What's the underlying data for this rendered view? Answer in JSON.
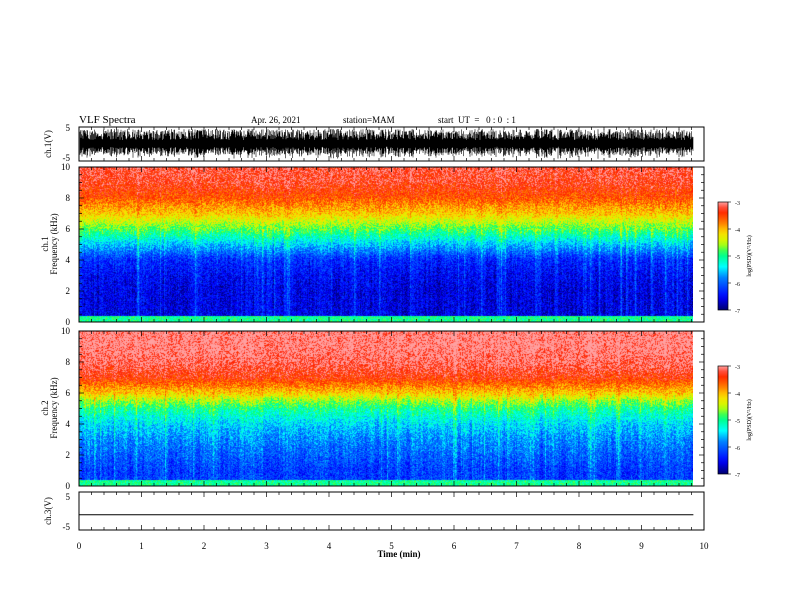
{
  "header": {
    "title": "VLF Spectra",
    "date": "Apr. 26, 2021",
    "station": "station=MAM",
    "start": "start  UT  =   0 : 0  : 1"
  },
  "colors": {
    "spectrogram_scale": [
      "#00008a",
      "#0000ff",
      "#0080ff",
      "#00ffff",
      "#00ff80",
      "#ffff00",
      "#ff8000",
      "#ff0000",
      "#ff8080",
      "#ffffff"
    ]
  },
  "chart_data": [
    {
      "type": "line",
      "panel": "ch1-waveform",
      "ylabel": "ch.1(V)",
      "ylim": [
        -5,
        5
      ],
      "yticks": [
        "5",
        "-5"
      ],
      "description_values": {
        "typical_min": -5,
        "typical_max": 5
      }
    },
    {
      "type": "heatmap",
      "panel": "ch1-spectrogram",
      "ylabel_top": "ch.1",
      "ylabel": "Frequency (kHz)",
      "ylim": [
        0,
        10
      ],
      "yticks": [
        "0",
        "2",
        "4",
        "6",
        "8",
        "10"
      ],
      "xlim": [
        0,
        9.83
      ],
      "colorbar": {
        "label": "log(PSD)(V²/Hz)",
        "range": [
          -7,
          -3
        ],
        "ticks": [
          "-3",
          "-4",
          "-5",
          "-6",
          "-7"
        ]
      },
      "profile_khz": [
        0,
        1,
        2,
        3,
        4,
        5,
        5.5,
        6,
        7,
        8,
        9,
        10
      ],
      "profile_log_psd": [
        -6.6,
        -6.6,
        -6.6,
        -6.5,
        -6.3,
        -5.6,
        -5.2,
        -4.8,
        -4.1,
        -3.6,
        -3.3,
        -3.2
      ]
    },
    {
      "type": "heatmap",
      "panel": "ch2-spectrogram",
      "ylabel_top": "ch.2",
      "ylabel": "Frequency (kHz)",
      "ylim": [
        0,
        10
      ],
      "yticks": [
        "0",
        "2",
        "4",
        "6",
        "8",
        "10"
      ],
      "xlim": [
        0,
        9.83
      ],
      "colorbar": {
        "label": "log(PSD)(V²/Hz)",
        "range": [
          -7,
          -3
        ],
        "ticks": [
          "-3",
          "-4",
          "-5",
          "-6",
          "-7"
        ]
      },
      "profile_khz": [
        0,
        1,
        2,
        3,
        4,
        5,
        5.5,
        6,
        7,
        8,
        9,
        10
      ],
      "profile_log_psd": [
        -6.2,
        -6.2,
        -6.0,
        -5.8,
        -5.5,
        -5.0,
        -4.6,
        -4.1,
        -3.4,
        -3.1,
        -3.0,
        -3.0
      ]
    },
    {
      "type": "line",
      "panel": "ch3-waveform",
      "ylabel": "ch.3(V)",
      "ylim": [
        -5,
        5
      ],
      "yticks": [
        "5",
        "-5"
      ],
      "x": [
        0,
        9.83
      ],
      "y": [
        -1,
        -1
      ]
    }
  ],
  "xaxis": {
    "label": "Time (min)",
    "range": [
      0,
      10
    ],
    "ticks": [
      "0",
      "1",
      "2",
      "3",
      "4",
      "5",
      "6",
      "7",
      "8",
      "9",
      "10"
    ]
  }
}
